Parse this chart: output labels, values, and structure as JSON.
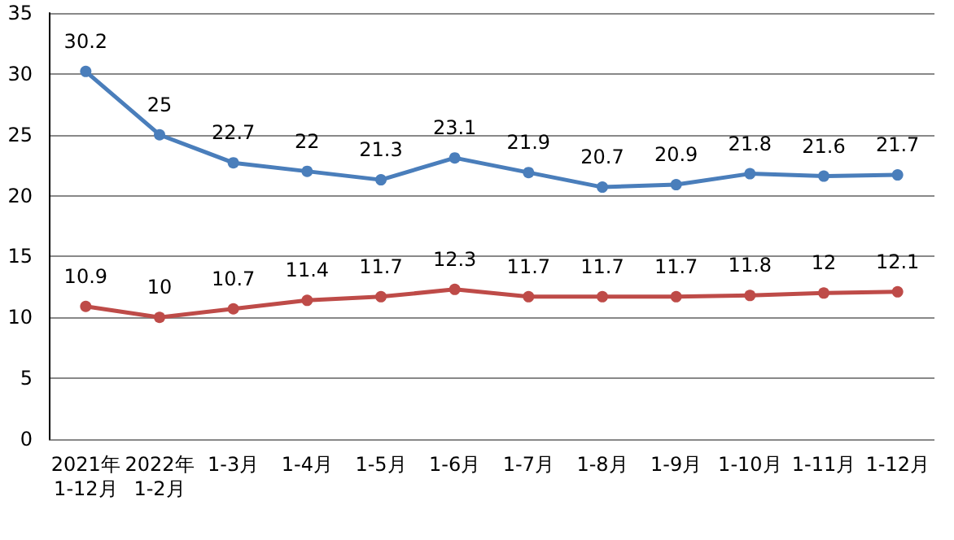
{
  "chart_data": {
    "type": "line",
    "categories": [
      "2021年1-12月",
      "2022年1-2月",
      "1-3月",
      "1-4月",
      "1-5月",
      "1-6月",
      "1-7月",
      "1-8月",
      "1-9月",
      "1-10月",
      "1-11月",
      "1-12月"
    ],
    "series": [
      {
        "color": "#4a7ebb",
        "values": [
          30.2,
          25,
          22.7,
          22,
          21.3,
          23.1,
          21.9,
          20.7,
          20.9,
          21.8,
          21.6,
          21.7
        ]
      },
      {
        "color": "#be4b48",
        "values": [
          10.9,
          10,
          10.7,
          11.4,
          11.7,
          12.3,
          11.7,
          11.7,
          11.7,
          11.8,
          12,
          12.1
        ]
      }
    ],
    "ylim": [
      0,
      35
    ],
    "yticks": [
      0,
      5,
      10,
      15,
      20,
      25,
      30,
      35
    ],
    "grid": "y",
    "marker": "circle",
    "line_style": "solid",
    "data_labels": true
  }
}
